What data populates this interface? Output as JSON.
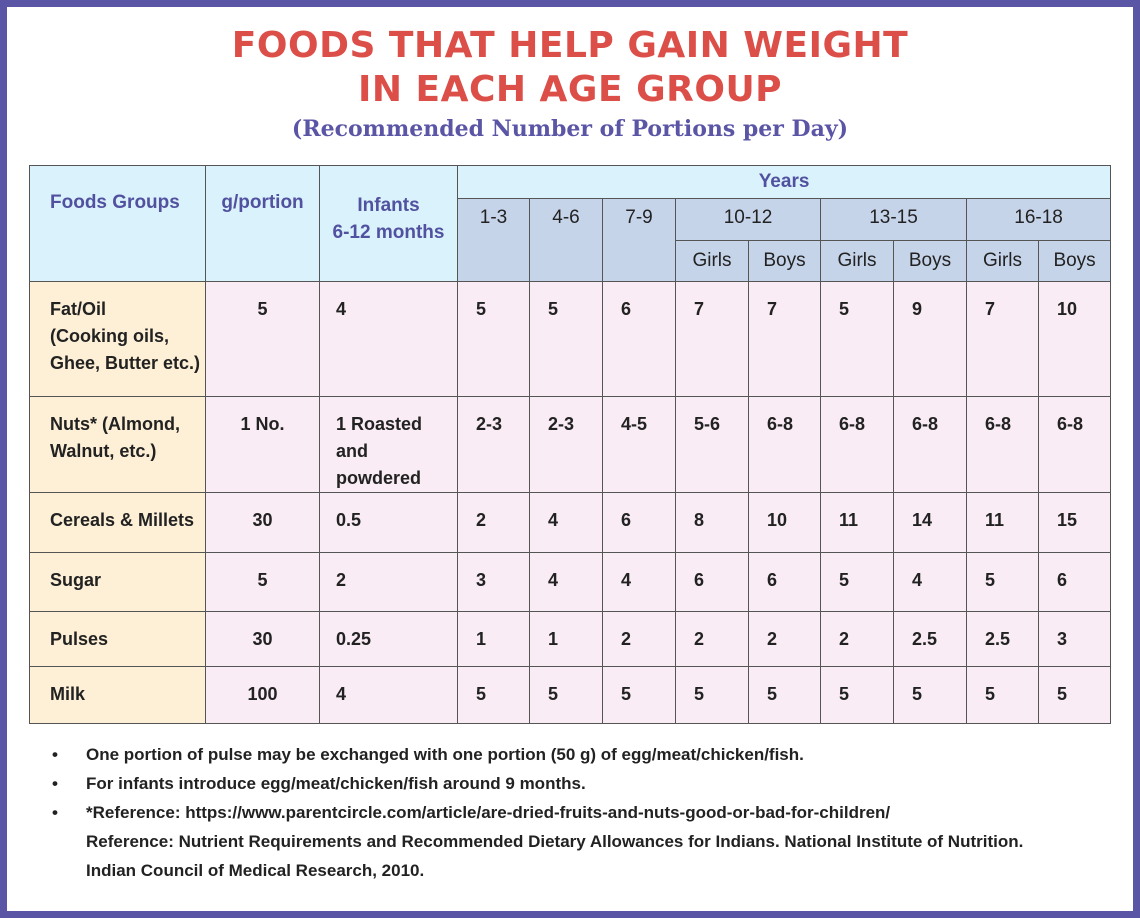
{
  "title_line1": "FOODS THAT HELP GAIN WEIGHT",
  "title_line2": "IN EACH AGE GROUP",
  "subtitle": "(Recommended Number of Portions per Day)",
  "colors": {
    "title": "#dc4e48",
    "accent": "#5b55a6",
    "header_bg": "#d9f2fb",
    "years_bg": "#c6d4ea",
    "food_bg": "#fdf0d6",
    "cell_bg": "#f9ecf4"
  },
  "headers": {
    "food_groups": "Foods Groups",
    "g_portion": "g/portion",
    "infants_line1": "Infants",
    "infants_line2": "6-12 months",
    "years": "Years",
    "age_groups": [
      "1-3",
      "4-6",
      "7-9",
      "10-12",
      "13-15",
      "16-18"
    ],
    "girls": "Girls",
    "boys": "Boys"
  },
  "rows": [
    {
      "food": [
        "Fat/Oil",
        "(Cooking oils,",
        "Ghee, Butter etc.)"
      ],
      "g_portion": "5",
      "infants": [
        "4"
      ],
      "values": [
        "5",
        "5",
        "6",
        "7",
        "7",
        "5",
        "9",
        "7",
        "10"
      ]
    },
    {
      "food": [
        "Nuts* (Almond,",
        "Walnut, etc.)"
      ],
      "g_portion": "1 No.",
      "infants": [
        "1 Roasted",
        "and powdered"
      ],
      "values": [
        "2-3",
        "2-3",
        "4-5",
        "5-6",
        "6-8",
        "6-8",
        "6-8",
        "6-8",
        "6-8"
      ]
    },
    {
      "food": [
        "Cereals & Millets"
      ],
      "g_portion": "30",
      "infants": [
        "0.5"
      ],
      "values": [
        "2",
        "4",
        "6",
        "8",
        "10",
        "11",
        "14",
        "11",
        "15"
      ]
    },
    {
      "food": [
        "Sugar"
      ],
      "g_portion": "5",
      "infants": [
        "2"
      ],
      "values": [
        "3",
        "4",
        "4",
        "6",
        "6",
        "5",
        "4",
        "5",
        "6"
      ]
    },
    {
      "food": [
        "Pulses"
      ],
      "g_portion": "30",
      "infants": [
        "0.25"
      ],
      "values": [
        "1",
        "1",
        "2",
        "2",
        "2",
        "2",
        "2.5",
        "2.5",
        "3"
      ]
    },
    {
      "food": [
        "Milk"
      ],
      "g_portion": "100",
      "infants": [
        "4"
      ],
      "values": [
        "5",
        "5",
        "5",
        "5",
        "5",
        "5",
        "5",
        "5",
        "5"
      ]
    }
  ],
  "notes": [
    "One portion of pulse may be exchanged with one portion (50 g) of egg/meat/chicken/fish.",
    "For infants introduce egg/meat/chicken/fish around 9 months.",
    "*Reference: https://www.parentcircle.com/article/are-dried-fruits-and-nuts-good-or-bad-for-children/"
  ],
  "reference_lines": [
    "Reference: Nutrient Requirements and Recommended Dietary Allowances for Indians. National Institute of Nutrition.",
    "Indian Council of Medical Research, 2010."
  ],
  "bullet": "•"
}
